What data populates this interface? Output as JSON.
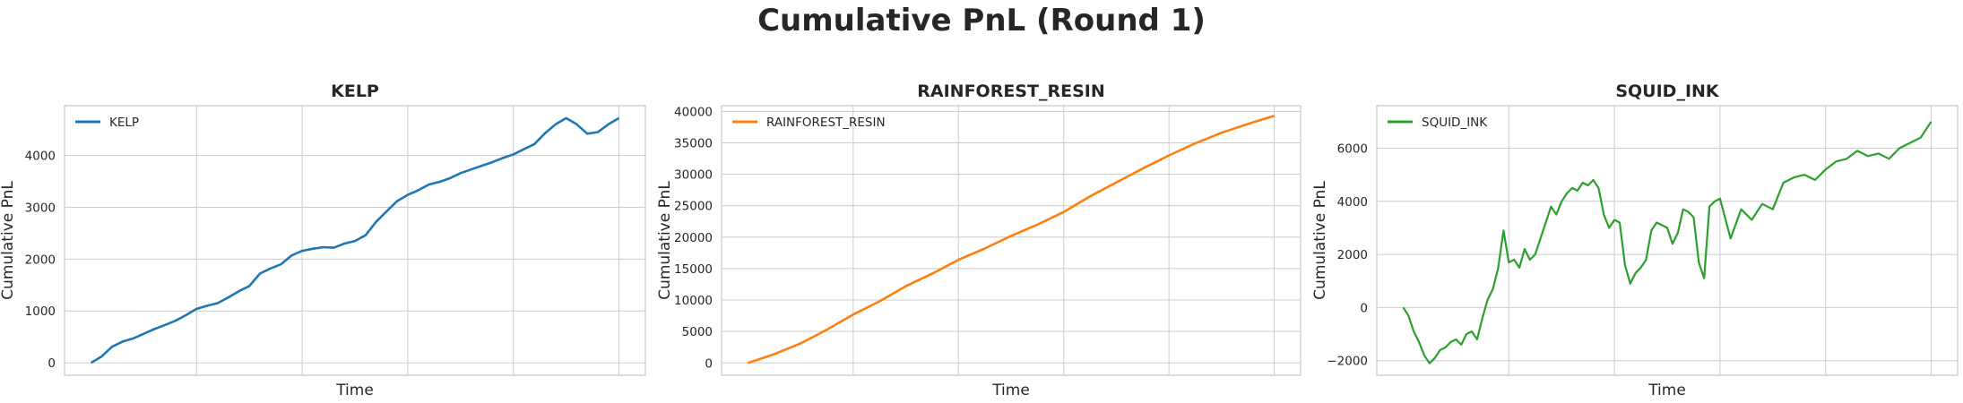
{
  "figure": {
    "title": "Cumulative PnL (Round 1)"
  },
  "chart_data": [
    {
      "type": "line",
      "title": "KELP",
      "xlabel": "Time",
      "ylabel": "Cumulative PnL",
      "xlim": [
        -0.05,
        1.05
      ],
      "ylim": [
        -240,
        4960
      ],
      "yticks": [
        0,
        1000,
        2000,
        3000,
        4000
      ],
      "xgrid": [
        0.2,
        0.4,
        0.6,
        0.8,
        1.0
      ],
      "grid": true,
      "legend_position": "upper-left",
      "series": [
        {
          "name": "KELP",
          "color": "#1f77b4",
          "x": [
            0,
            0.02,
            0.04,
            0.06,
            0.08,
            0.1,
            0.12,
            0.14,
            0.16,
            0.18,
            0.2,
            0.22,
            0.24,
            0.26,
            0.28,
            0.3,
            0.32,
            0.34,
            0.36,
            0.38,
            0.4,
            0.42,
            0.44,
            0.46,
            0.48,
            0.5,
            0.52,
            0.54,
            0.56,
            0.58,
            0.6,
            0.62,
            0.64,
            0.66,
            0.68,
            0.7,
            0.72,
            0.74,
            0.76,
            0.78,
            0.8,
            0.82,
            0.84,
            0.86,
            0.88,
            0.9,
            0.92,
            0.94,
            0.96,
            0.98,
            1.0
          ],
          "y": [
            0,
            120,
            310,
            410,
            470,
            560,
            650,
            730,
            810,
            920,
            1040,
            1100,
            1150,
            1260,
            1380,
            1480,
            1720,
            1820,
            1900,
            2070,
            2160,
            2200,
            2230,
            2220,
            2300,
            2350,
            2460,
            2720,
            2920,
            3120,
            3240,
            3330,
            3440,
            3490,
            3560,
            3660,
            3730,
            3800,
            3870,
            3950,
            4020,
            4120,
            4220,
            4430,
            4600,
            4720,
            4600,
            4420,
            4450,
            4600,
            4720
          ]
        }
      ]
    },
    {
      "type": "line",
      "title": "RAINFOREST_RESIN",
      "xlabel": "Time",
      "ylabel": "Cumulative PnL",
      "xlim": [
        -0.05,
        1.05
      ],
      "ylim": [
        -1950,
        40900
      ],
      "yticks": [
        0,
        5000,
        10000,
        15000,
        20000,
        25000,
        30000,
        35000,
        40000
      ],
      "xgrid": [
        0.2,
        0.4,
        0.6,
        0.8,
        1.0
      ],
      "grid": true,
      "legend_position": "upper-left",
      "series": [
        {
          "name": "RAINFOREST_RESIN",
          "color": "#ff7f0e",
          "x": [
            0,
            0.05,
            0.1,
            0.15,
            0.2,
            0.25,
            0.3,
            0.35,
            0.4,
            0.45,
            0.5,
            0.55,
            0.6,
            0.65,
            0.7,
            0.75,
            0.8,
            0.85,
            0.9,
            0.95,
            1.0
          ],
          "y": [
            0,
            1400,
            3100,
            5300,
            7700,
            9800,
            12200,
            14200,
            16400,
            18200,
            20200,
            22000,
            24000,
            26500,
            28700,
            30900,
            33000,
            34900,
            36600,
            38000,
            39300
          ]
        }
      ]
    },
    {
      "type": "line",
      "title": "SQUID_INK",
      "xlabel": "Time",
      "ylabel": "Cumulative PnL",
      "xlim": [
        -0.05,
        1.05
      ],
      "ylim": [
        -2550,
        7600
      ],
      "yticks": [
        -2000,
        0,
        2000,
        4000,
        6000
      ],
      "xgrid": [
        0.2,
        0.4,
        0.6,
        0.8,
        1.0
      ],
      "grid": true,
      "legend_position": "upper-left",
      "series": [
        {
          "name": "SQUID_INK",
          "color": "#2ca02c",
          "x": [
            0,
            0.01,
            0.02,
            0.03,
            0.04,
            0.05,
            0.06,
            0.07,
            0.08,
            0.09,
            0.1,
            0.11,
            0.12,
            0.13,
            0.14,
            0.15,
            0.16,
            0.17,
            0.18,
            0.19,
            0.2,
            0.21,
            0.22,
            0.23,
            0.24,
            0.25,
            0.26,
            0.27,
            0.28,
            0.29,
            0.3,
            0.31,
            0.32,
            0.33,
            0.34,
            0.35,
            0.36,
            0.37,
            0.38,
            0.39,
            0.4,
            0.41,
            0.42,
            0.43,
            0.44,
            0.45,
            0.46,
            0.47,
            0.48,
            0.49,
            0.5,
            0.51,
            0.52,
            0.53,
            0.54,
            0.55,
            0.56,
            0.57,
            0.58,
            0.59,
            0.6,
            0.62,
            0.64,
            0.66,
            0.68,
            0.7,
            0.72,
            0.74,
            0.76,
            0.78,
            0.8,
            0.82,
            0.84,
            0.86,
            0.88,
            0.9,
            0.92,
            0.94,
            0.96,
            0.98,
            0.99,
            1.0
          ],
          "y": [
            0,
            -300,
            -900,
            -1300,
            -1800,
            -2100,
            -1900,
            -1600,
            -1500,
            -1300,
            -1200,
            -1400,
            -1000,
            -900,
            -1200,
            -400,
            300,
            700,
            1500,
            2900,
            1700,
            1800,
            1500,
            2200,
            1800,
            2000,
            2600,
            3200,
            3800,
            3500,
            4000,
            4300,
            4500,
            4400,
            4700,
            4600,
            4800,
            4500,
            3500,
            3000,
            3300,
            3200,
            1600,
            900,
            1300,
            1500,
            1800,
            2900,
            3200,
            3100,
            3000,
            2400,
            2800,
            3700,
            3600,
            3400,
            1700,
            1100,
            3800,
            4000,
            4100,
            2600,
            3700,
            3300,
            3900,
            3700,
            4700,
            4900,
            5000,
            4800,
            5200,
            5500,
            5600,
            5900,
            5700,
            5800,
            5600,
            6000,
            6200,
            6400,
            6700,
            7000
          ]
        }
      ]
    }
  ]
}
